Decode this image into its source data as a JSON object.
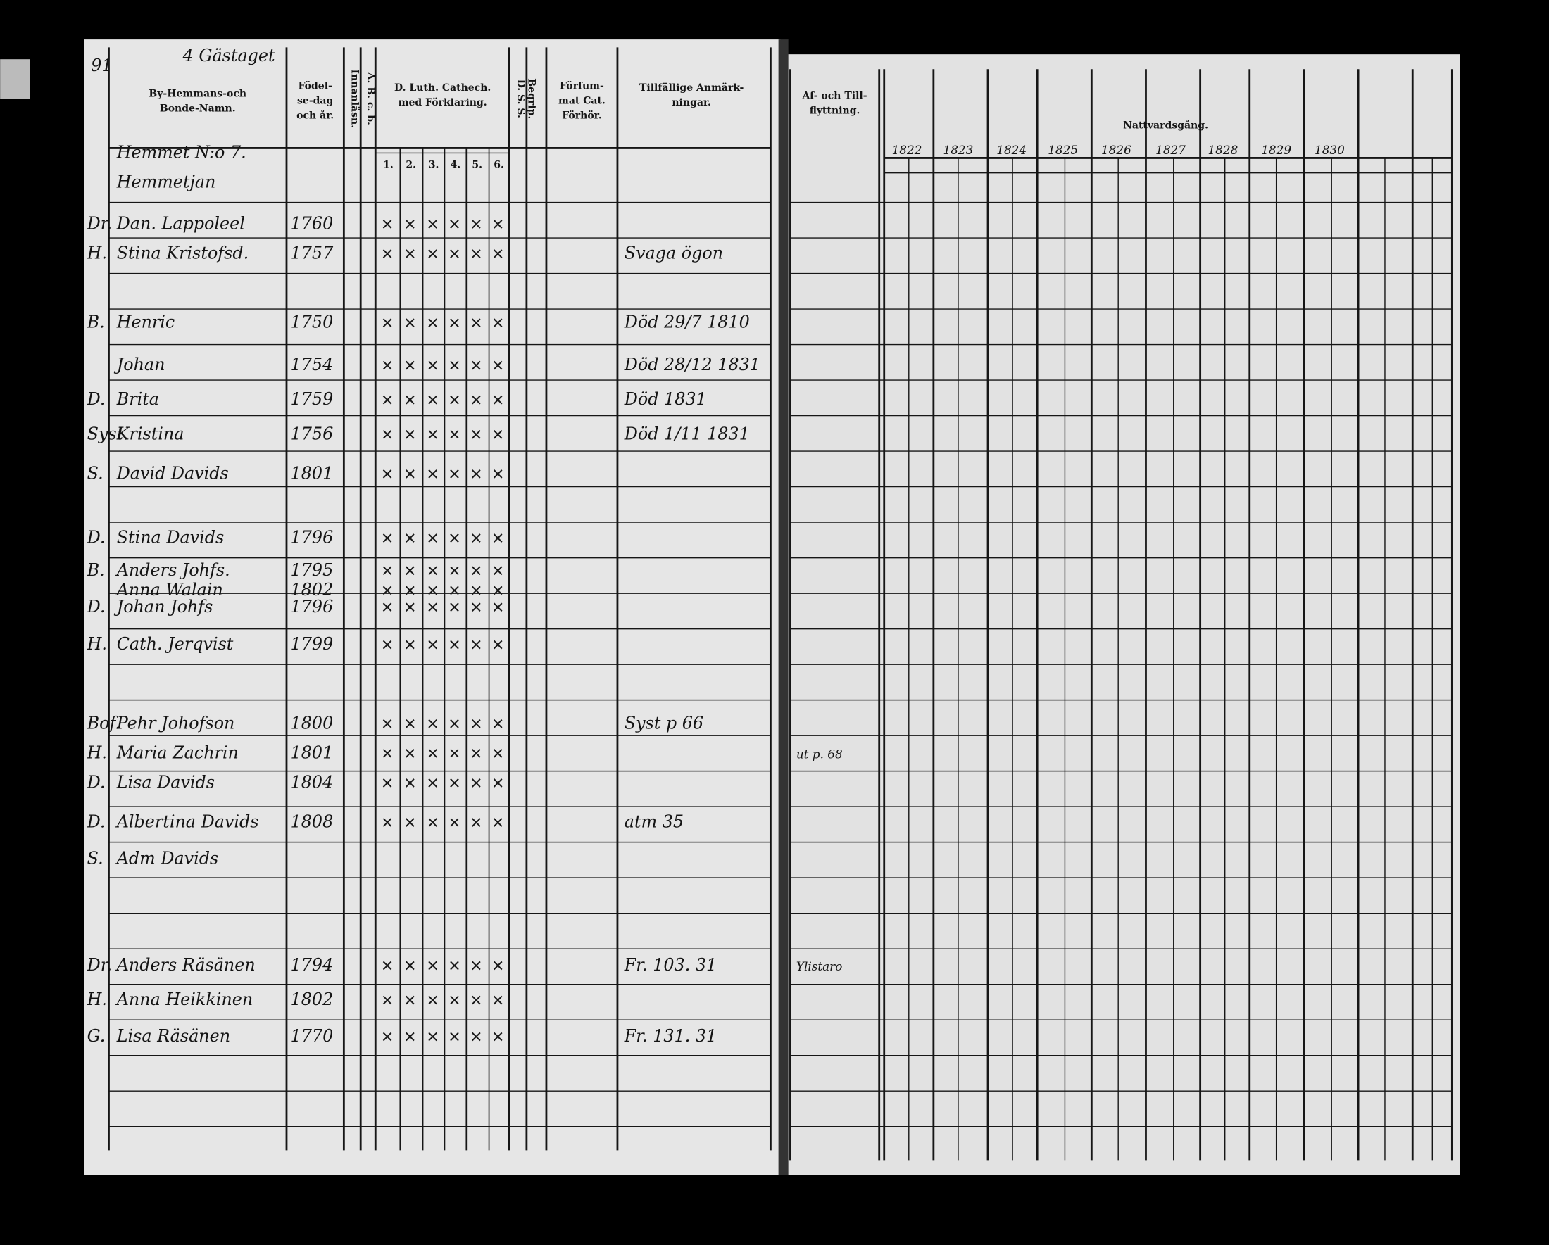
{
  "left_page": {
    "page_number": "91",
    "heading": "4 Gästaget",
    "headers": [
      {
        "lines": [
          "By-Hemmans-och",
          "Bonde-Namn."
        ]
      },
      {
        "lines": [
          "Födel-",
          "se-dag",
          "och år."
        ]
      },
      {
        "lines": [
          "Innanläsn."
        ]
      },
      {
        "lines": [
          "A. B. c. b."
        ]
      },
      {
        "lines": [
          "D. Luth. Cathech.",
          "med Förklaring."
        ]
      },
      {
        "lines": [
          "D. S. S.",
          "Begrip."
        ]
      },
      {
        "lines": [
          "Förfum-",
          "mat Cat.",
          "Förhör."
        ]
      },
      {
        "lines": [
          "Tillfällige Anmärk-",
          "ningar."
        ]
      }
    ],
    "catechism_parts": [
      "1.",
      "2.",
      "3.",
      "4.",
      "5.",
      "6."
    ],
    "household": "Hemmet N:o 7.",
    "rows": [
      {
        "name": "Hemmetjan"
      },
      {
        "relation": "Dr.",
        "name": "Dan. Lappoleel",
        "born": "1760"
      },
      {
        "relation": "H.",
        "name": "Stina Kristofsd.",
        "born": "1757",
        "note": "Svaga ögon"
      },
      {
        "relation": "B.",
        "name": "Henric",
        "born": "1750",
        "note": "Död 29/7 1810"
      },
      {
        "name": "Johan",
        "born": "1754",
        "note": "Död 28/12 1831"
      },
      {
        "relation": "D.",
        "name": "Brita",
        "born": "1759",
        "note": "Död 1831"
      },
      {
        "relation": "Syst.",
        "name": "Kristina",
        "born": "1756",
        "note": "Död 1/11 1831"
      },
      {
        "relation": "S.",
        "name": "David Davids",
        "born": "1801"
      },
      {
        "relation": "D.",
        "name": "Stina Davids",
        "born": "1796"
      },
      {
        "relation": "B.",
        "name": "Anders Johfs.",
        "born": "1795"
      },
      {
        "name": "Anna Walain",
        "born": "1802"
      },
      {
        "relation": "D.",
        "name": "Johan Johfs",
        "born": "1796"
      },
      {
        "relation": "H.",
        "name": "Cath. Jerqvist",
        "born": "1799"
      },
      {
        "relation": "Bof.",
        "name": "Pehr Johofson",
        "born": "1800",
        "note": "Syst p 66"
      },
      {
        "relation": "H.",
        "name": "Maria Zachrin",
        "born": "1801",
        "moved": "ut p. 68"
      },
      {
        "relation": "D.",
        "name": "Lisa Davids",
        "born": "1804"
      },
      {
        "relation": "D.",
        "name": "Albertina Davids",
        "born": "1808",
        "note": "atm 35"
      },
      {
        "relation": "S.",
        "name": "Adm Davids"
      },
      {
        "relation": "Dr.",
        "name": "Anders Räsänen",
        "born": "1794",
        "note": "Fr. 103. 31",
        "moved": "Ylistaro"
      },
      {
        "relation": "H.",
        "name": "Anna Heikkinen",
        "born": "1802"
      },
      {
        "relation": "G.",
        "name": "Lisa Räsänen",
        "born": "1770",
        "note": "Fr. 131. 31"
      }
    ]
  },
  "right_page": {
    "headers": [
      {
        "lines": [
          "Af- och Till-",
          "flyttning."
        ]
      },
      {
        "lines": [
          "Nattvardsgång."
        ]
      }
    ],
    "years": [
      "1822",
      "1823",
      "1824",
      "1825",
      "1826",
      "1827",
      "1828",
      "1829",
      "1830"
    ]
  }
}
